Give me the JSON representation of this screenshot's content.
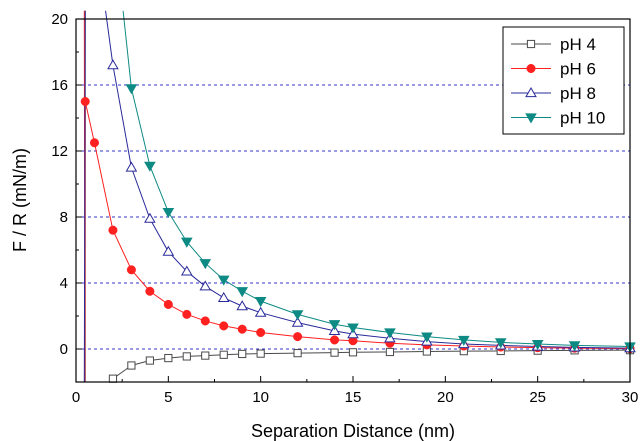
{
  "chart_data": {
    "type": "line",
    "xlabel": "Separation Distance (nm)",
    "ylabel": "F / R (mN/m)",
    "xlim": [
      0,
      30
    ],
    "ylim": [
      -2,
      20
    ],
    "xticks": [
      0,
      5,
      10,
      15,
      20,
      25,
      30
    ],
    "yticks": [
      0,
      4,
      8,
      12,
      16,
      20
    ],
    "gridlines_y": [
      0,
      4,
      8,
      12,
      16,
      20
    ],
    "grid": "horizontal dashed",
    "legend_position": "top-right",
    "series": [
      {
        "name": "pH 4",
        "color": "#4a4a4a",
        "marker": "open-square",
        "x": [
          2,
          3,
          4,
          5,
          6,
          7,
          8,
          9,
          10,
          12,
          14,
          15,
          17,
          19,
          21,
          23,
          25,
          27,
          30
        ],
        "y": [
          -1.8,
          -1.0,
          -0.7,
          -0.55,
          -0.45,
          -0.4,
          -0.35,
          -0.3,
          -0.28,
          -0.25,
          -0.22,
          -0.2,
          -0.18,
          -0.15,
          -0.13,
          -0.12,
          -0.1,
          -0.08,
          -0.07
        ]
      },
      {
        "name": "pH 6",
        "color": "#ff2020",
        "marker": "filled-circle",
        "x": [
          0.5,
          1,
          2,
          3,
          4,
          5,
          6,
          7,
          8,
          9,
          10,
          12,
          14,
          15,
          17,
          19,
          21,
          23,
          25,
          27,
          30
        ],
        "y": [
          15.0,
          12.5,
          7.2,
          4.8,
          3.5,
          2.7,
          2.1,
          1.7,
          1.4,
          1.2,
          1.0,
          0.75,
          0.55,
          0.5,
          0.35,
          0.25,
          0.18,
          0.12,
          0.08,
          0.05,
          0.02
        ]
      },
      {
        "name": "pH 8",
        "color": "#2a2a9a",
        "marker": "open-triangle-up",
        "x": [
          2,
          3,
          4,
          5,
          6,
          7,
          8,
          9,
          10,
          12,
          14,
          15,
          17,
          19,
          21,
          23,
          25,
          27,
          30
        ],
        "y": [
          17.2,
          11.0,
          7.9,
          5.9,
          4.7,
          3.8,
          3.1,
          2.6,
          2.2,
          1.6,
          1.1,
          0.9,
          0.65,
          0.45,
          0.3,
          0.22,
          0.15,
          0.1,
          0.05
        ]
      },
      {
        "name": "pH 10",
        "color": "#0e8a84",
        "marker": "filled-triangle-down",
        "x": [
          3,
          4,
          5,
          6,
          7,
          8,
          9,
          10,
          12,
          14,
          15,
          17,
          19,
          21,
          23,
          25,
          27,
          30
        ],
        "y": [
          15.8,
          11.1,
          8.3,
          6.5,
          5.2,
          4.2,
          3.5,
          2.9,
          2.1,
          1.5,
          1.3,
          1.0,
          0.75,
          0.55,
          0.4,
          0.3,
          0.22,
          0.15
        ]
      }
    ],
    "steep_branches": [
      {
        "series": "pH 4",
        "x": [
          0.5,
          0.5
        ]
      },
      {
        "series": "pH 6",
        "x": [
          0.45,
          0.5
        ]
      },
      {
        "series": "pH 8",
        "x": [
          0.45,
          1.0,
          1.5,
          2
        ]
      },
      {
        "series": "pH 10",
        "x": [
          2.5,
          3
        ]
      }
    ]
  }
}
